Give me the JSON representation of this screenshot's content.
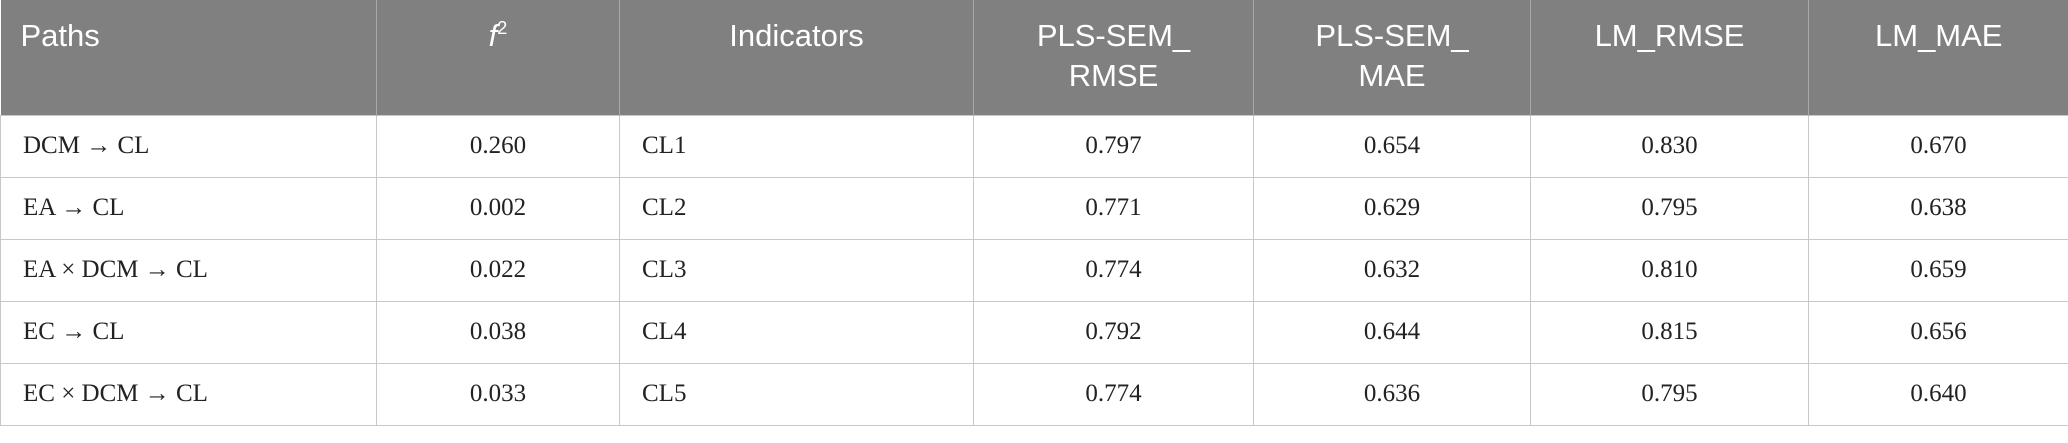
{
  "table": {
    "header": [
      "Paths",
      {
        "base": "f",
        "sup": "2"
      },
      "Indicators",
      "PLS-SEM_ RMSE",
      "PLS-SEM_ MAE",
      "LM_RMSE",
      "LM_MAE"
    ],
    "rows": [
      [
        "DCM → CL",
        "0.260",
        "CL1",
        "0.797",
        "0.654",
        "0.830",
        "0.670"
      ],
      [
        "EA → CL",
        "0.002",
        "CL2",
        "0.771",
        "0.629",
        "0.795",
        "0.638"
      ],
      [
        "EA × DCM → CL",
        "0.022",
        "CL3",
        "0.774",
        "0.632",
        "0.810",
        "0.659"
      ],
      [
        "EC → CL",
        "0.038",
        "CL4",
        "0.792",
        "0.644",
        "0.815",
        "0.656"
      ],
      [
        "EC × DCM → CL",
        "0.033",
        "CL5",
        "0.774",
        "0.636",
        "0.795",
        "0.640"
      ]
    ]
  }
}
